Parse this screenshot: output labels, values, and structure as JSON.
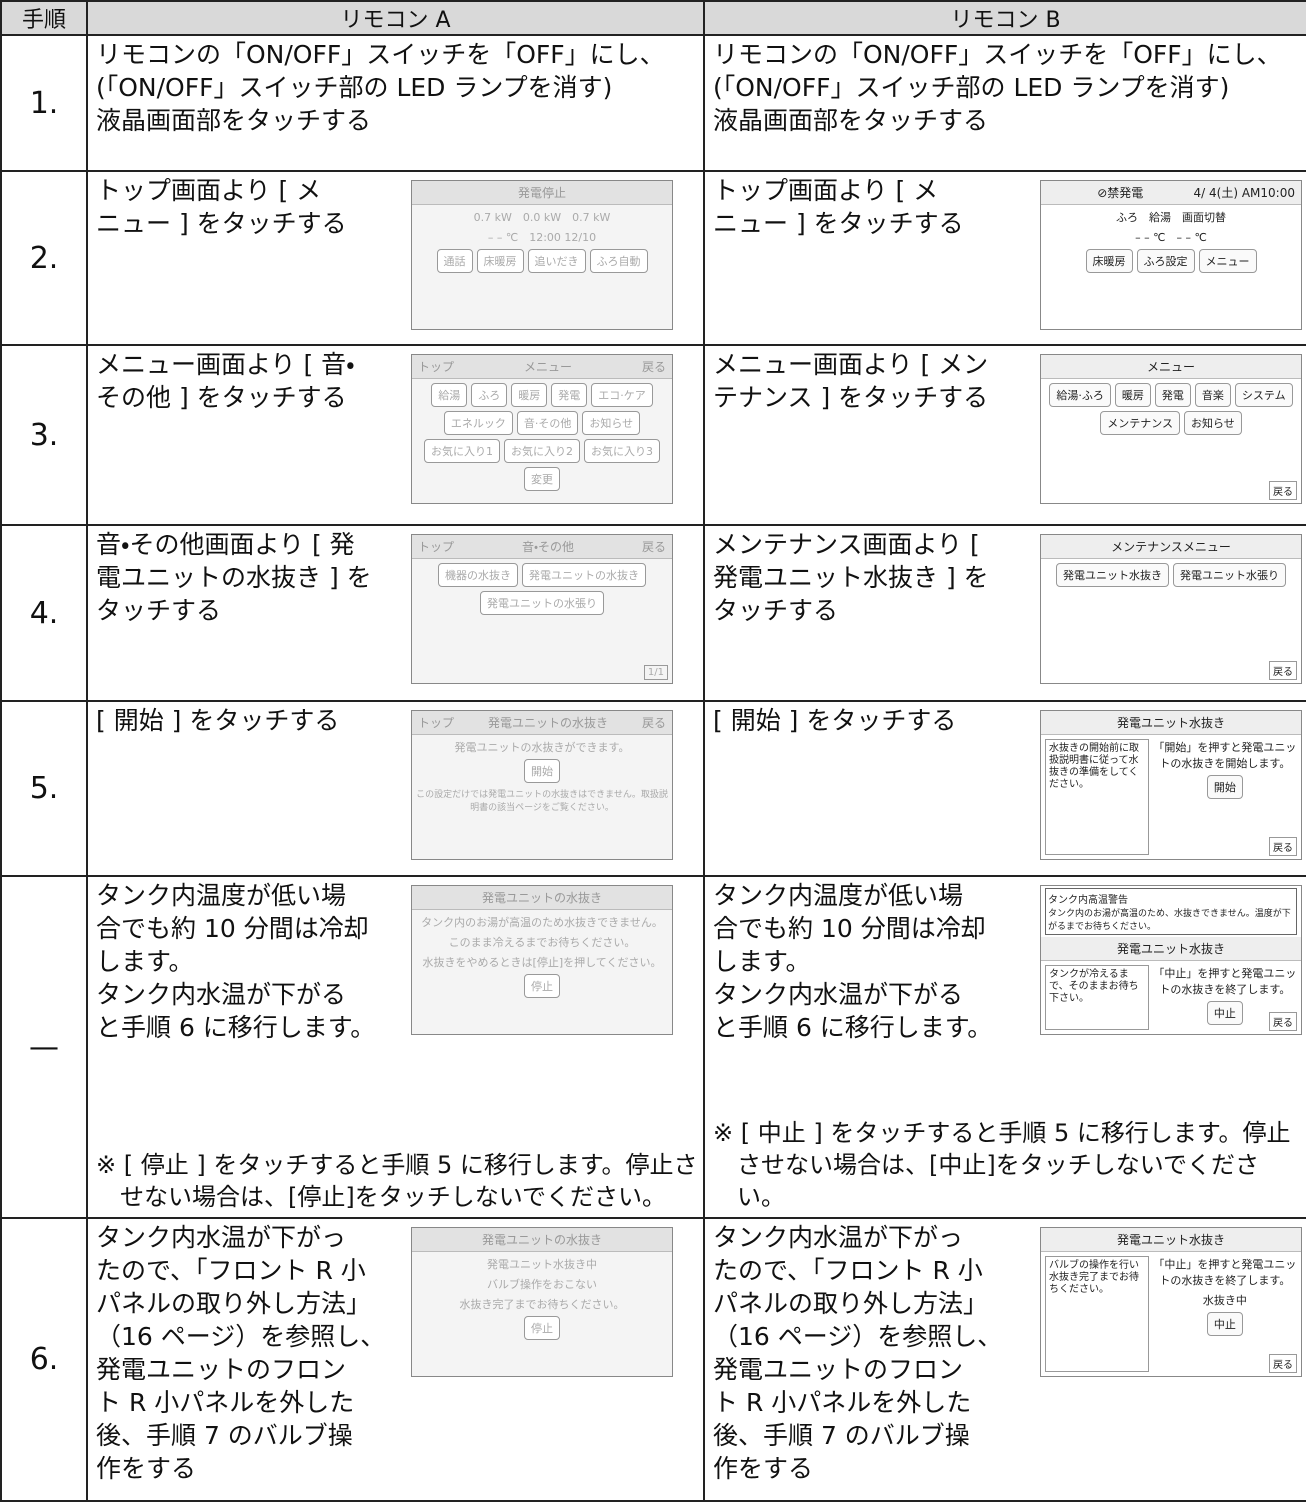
{
  "header": {
    "step": "手順",
    "a": "リモコン A",
    "b": "リモコン B"
  },
  "rows": [
    {
      "step": "1.",
      "a": {
        "text": "リモコンの「ON/OFF」スイッチを「OFF」にし、\n(「ON/OFF」スイッチ部の LED ランプを消す)\n液晶画面部をタッチする"
      },
      "b": {
        "text": "リモコンの「ON/OFF」スイッチを「OFF」にし、\n(「ON/OFF」スイッチ部の LED ランプを消す)\n液晶画面部をタッチする"
      }
    },
    {
      "step": "2.",
      "a": {
        "text": "トップ画面より [ メ\nニュー ] をタッチする",
        "screen": {
          "title": "発電停止",
          "lines": [
            "0.7 kW　0.0 kW　0.7 kW",
            "– – ℃　12:00 12/10"
          ],
          "buttons": [
            "通話",
            "床暖房",
            "追いだき",
            "ふろ自動"
          ]
        }
      },
      "b": {
        "text": "トップ画面より [ メ\nニュー ] をタッチする",
        "screen": {
          "title": "⊘禁発電",
          "corner_right": "4/ 4(土) AM10:00",
          "lines": [
            "ふろ　給湯　画面切替",
            "– – ℃　– – ℃"
          ],
          "buttons": [
            "床暖房",
            "ふろ設定",
            "メニュー"
          ]
        }
      }
    },
    {
      "step": "3.",
      "a": {
        "text": "メニュー画面より [ 音・\nその他 ] をタッチする",
        "screen": {
          "corner_left": "トップ",
          "title": "メニュー",
          "corner_right": "戻る",
          "buttons": [
            "給湯",
            "ふろ",
            "暖房",
            "発電",
            "エコ·ケア",
            "エネルック",
            "音·その他",
            "お知らせ",
            "お気に入り1",
            "お気に入り2",
            "お気に入り3",
            "変更"
          ]
        }
      },
      "b": {
        "text": "メニュー画面より [ メン\nテナンス ] をタッチする",
        "screen": {
          "title": "メニュー",
          "buttons": [
            "給湯·ふろ",
            "暖房",
            "発電",
            "音楽",
            "システム",
            "メンテナンス",
            "お知らせ"
          ],
          "back": "戻る"
        }
      }
    },
    {
      "step": "4.",
      "a": {
        "text": "音・その他画面より [ 発\n電ユニットの水抜き ] を\nタッチする",
        "screen": {
          "corner_left": "トップ",
          "title": "音・その他",
          "corner_right": "戻る",
          "buttons": [
            "機器の水抜き",
            "発電ユニットの水抜き",
            "発電ユニットの水張り"
          ],
          "back": "1/1"
        }
      },
      "b": {
        "text": "メンテナンス画面より [\n発電ユニット水抜き ] を\nタッチする",
        "screen": {
          "title": "メンテナンスメニュー",
          "buttons": [
            "発電ユニット水抜き",
            "発電ユニット水張り"
          ],
          "back": "戻る"
        }
      }
    },
    {
      "step": "5.",
      "a": {
        "text": "[ 開始 ] をタッチする",
        "screen": {
          "corner_left": "トップ",
          "title": "発電ユニットの水抜き",
          "corner_right": "戻る",
          "lines": [
            "発電ユニットの水抜きができます。"
          ],
          "buttons": [
            "開始"
          ],
          "note": "この設定だけでは発電ユニットの水抜きはできません。取扱説明書の該当ページをご覧ください。"
        }
      },
      "b": {
        "text": "[ 開始 ] をタッチする",
        "screen": {
          "title": "発電ユニット水抜き",
          "lines": [
            "「開始」を押すと発電ユニットの水抜きを開始します。"
          ],
          "side": "水抜きの開始前に取扱説明書に従って水抜きの準備をしてください。",
          "buttons": [
            "開始"
          ],
          "back": "戻る"
        }
      }
    },
    {
      "step": "—",
      "a": {
        "text": "タンク内温度が低い場\n合でも約 10 分間は冷却\nします。\nタンク内水温が下がる\nと手順 6 に移行します。",
        "screen": {
          "title": "発電ユニットの水抜き",
          "lines": [
            "タンク内のお湯が高温のため水抜きできません。",
            "このまま冷えるまでお待ちください。",
            "水抜きをやめるときは[停止]を押してください。"
          ],
          "buttons": [
            "停止"
          ]
        },
        "note": "※ [ 停止 ] をタッチすると手順 5 に移行します。停止させない場合は、[停止]をタッチしないでください。"
      },
      "b": {
        "text": "タンク内温度が低い場\n合でも約 10 分間は冷却\nします。\nタンク内水温が下がる\nと手順 6 に移行します。",
        "screen": {
          "warning_title": "タンク内高温警告",
          "warning": "タンク内のお湯が高温のため、水抜きできません。温度が下がるまでお待ちください。",
          "title": "発電ユニット水抜き",
          "lines": [
            "「中止」を押すと発電ユニットの水抜きを終了します。"
          ],
          "side": "タンクが冷えるまで、そのままお待ち下さい。",
          "buttons": [
            "中止"
          ],
          "back": "戻る"
        },
        "note": "※ [ 中止 ] をタッチすると手順 5 に移行します。停止させない場合は、[中止]をタッチしないでください。"
      }
    },
    {
      "step": "6.",
      "a": {
        "text": "タンク内水温が下がっ\nたので、「フロント R 小\nパネルの取り外し方法」\n（16 ページ）を参照し、\n発電ユニットのフロン\nト R 小パネルを外した\n後、手順 7 のバルブ操\n作をする",
        "screen": {
          "title": "発電ユニットの水抜き",
          "lines": [
            "発電ユニット水抜き中",
            "バルブ操作をおこない",
            "水抜き完了までお待ちください。"
          ],
          "buttons": [
            "停止"
          ]
        }
      },
      "b": {
        "text": "タンク内水温が下がっ\nたので、「フロント R 小\nパネルの取り外し方法」\n（16 ページ）を参照し、\n発電ユニットのフロン\nト R 小パネルを外した\n後、手順 7 のバルブ操\n作をする",
        "screen": {
          "title": "発電ユニット水抜き",
          "lines": [
            "「中止」を押すと発電ユニットの水抜きを終了します。",
            "水抜き中"
          ],
          "side": "バルブの操作を行い水抜き完了までお待ちください。",
          "buttons": [
            "中止"
          ],
          "back": "戻る"
        }
      }
    }
  ]
}
